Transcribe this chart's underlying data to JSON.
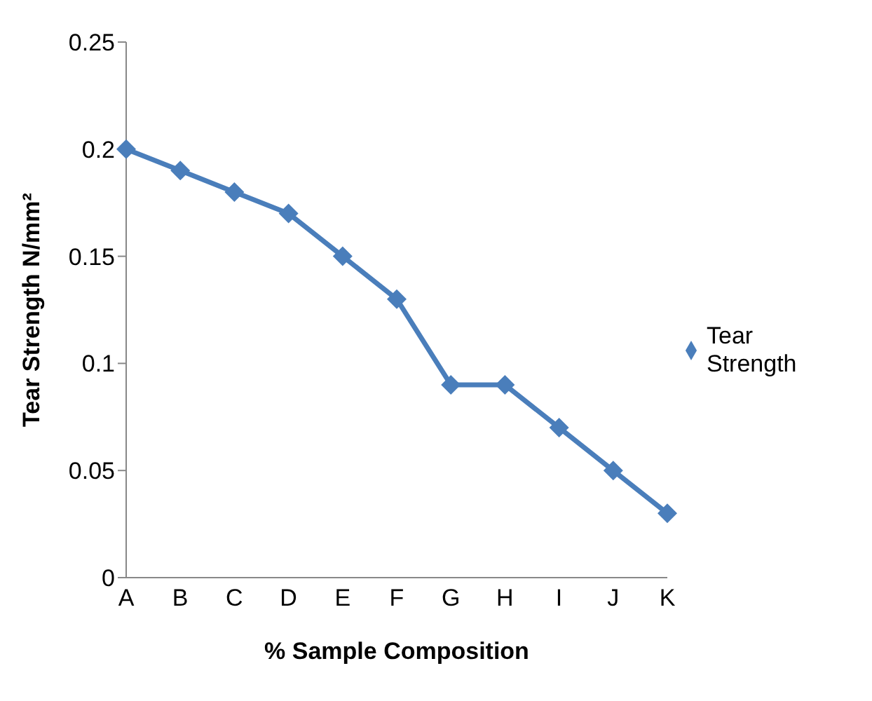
{
  "chart_data": {
    "type": "line",
    "xlabel": "% Sample Composition",
    "ylabel": "Tear Strength N/mm²",
    "categories": [
      "A",
      "B",
      "C",
      "D",
      "E",
      "F",
      "G",
      "H",
      "I",
      "J",
      "K"
    ],
    "series": [
      {
        "name": "Tear Strength",
        "color": "#4a7ebb",
        "values": [
          0.2,
          0.19,
          0.18,
          0.17,
          0.15,
          0.13,
          0.09,
          0.09,
          0.07,
          0.05,
          0.03
        ]
      }
    ],
    "ylim": [
      0,
      0.25
    ],
    "yticks": [
      0,
      0.05,
      0.1,
      0.15,
      0.2,
      0.25
    ],
    "grid": false,
    "legend": "right",
    "marker": "diamond",
    "line_style": "solid"
  }
}
